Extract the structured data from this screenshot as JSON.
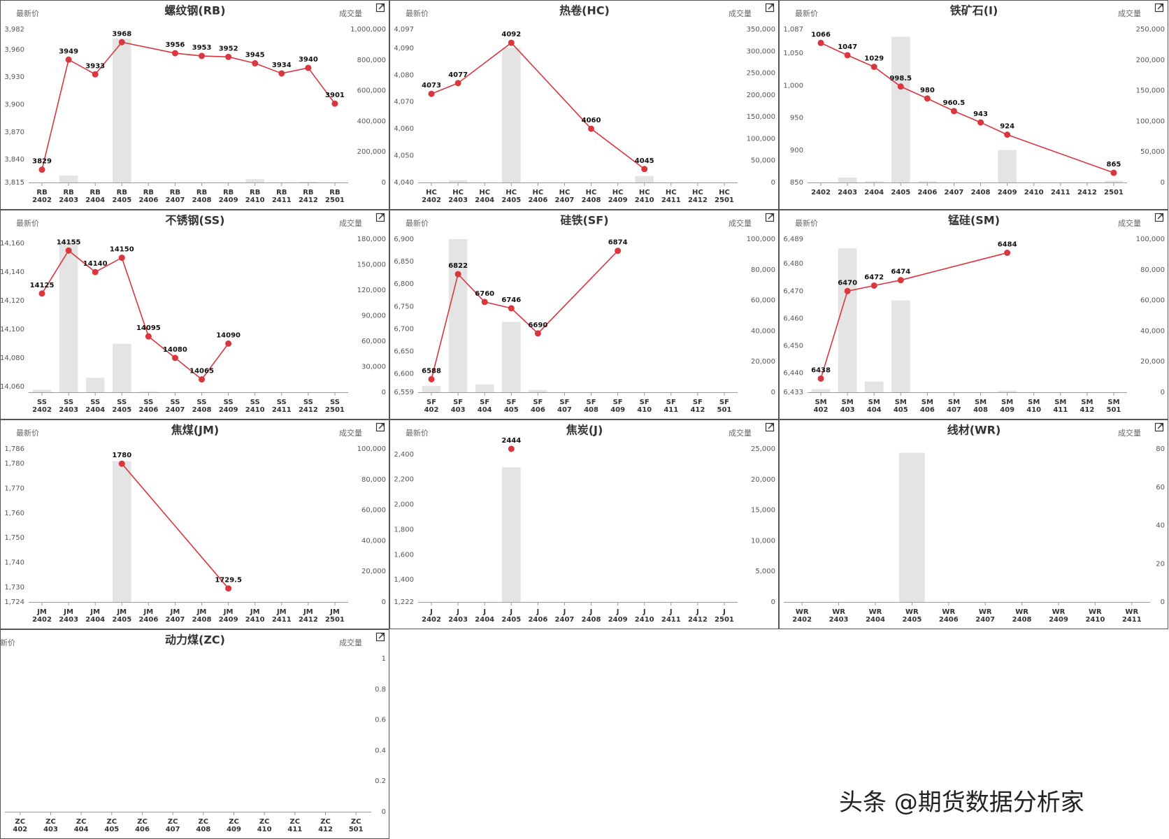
{
  "chart_data": [
    {
      "type": "combo",
      "title": "螺纹钢(RB)",
      "y_label": "最新价",
      "y2_label": "成交量",
      "categories": [
        "RB\n2402",
        "RB\n2403",
        "RB\n2404",
        "RB\n2405",
        "RB\n2406",
        "RB\n2407",
        "RB\n2408",
        "RB\n2409",
        "RB\n2410",
        "RB\n2411",
        "RB\n2412",
        "RB\n2501"
      ],
      "ylim": [
        3815,
        3982
      ],
      "yticks": [
        {
          "value": 3815,
          "label": "3,815"
        },
        {
          "value": 3840,
          "label": "3,840"
        },
        {
          "value": 3870,
          "label": "3,870"
        },
        {
          "value": 3900,
          "label": "3,900"
        },
        {
          "value": 3930,
          "label": "3,930"
        },
        {
          "value": 3960,
          "label": "3,960"
        },
        {
          "value": 3982,
          "label": "3,982"
        }
      ],
      "y2lim": [
        0,
        1000000
      ],
      "y2ticks": [
        0,
        {
          "value": 200000,
          "label": "200,000"
        },
        {
          "value": 400000,
          "label": "400,000"
        },
        {
          "value": 600000,
          "label": "600,000"
        },
        {
          "value": 800000,
          "label": "800,000"
        },
        {
          "value": 1000000,
          "label": "1,000,000"
        }
      ],
      "connect_gaps": true,
      "series": [
        {
          "type": "bar",
          "axis": "y2",
          "color": "#e4e4e4",
          "values": [
            null,
            45000,
            null,
            940000,
            null,
            null,
            null,
            null,
            22000,
            null,
            5000,
            null
          ]
        },
        {
          "type": "line",
          "color": "#d9363e",
          "values": [
            3829,
            3949,
            3933,
            3968,
            null,
            3956,
            3953,
            3952,
            3945,
            3934,
            3940,
            3901
          ]
        }
      ]
    },
    {
      "type": "combo",
      "title": "热卷(HC)",
      "y_label": "最新价",
      "y2_label": "成交量",
      "categories": [
        "HC\n2402",
        "HC\n2403",
        "HC\n2404",
        "HC\n2405",
        "HC\n2406",
        "HC\n2407",
        "HC\n2408",
        "HC\n2409",
        "HC\n2410",
        "HC\n2411",
        "HC\n2412",
        "HC\n2501"
      ],
      "ylim": [
        4040,
        4097
      ],
      "yticks": [
        {
          "value": 4040,
          "label": "4,040"
        },
        {
          "value": 4050,
          "label": "4,050"
        },
        {
          "value": 4060,
          "label": "4,060"
        },
        {
          "value": 4070,
          "label": "4,070"
        },
        {
          "value": 4080,
          "label": "4,080"
        },
        {
          "value": 4090,
          "label": "4,090"
        },
        {
          "value": 4097,
          "label": "4,097"
        }
      ],
      "y2lim": [
        0,
        350000
      ],
      "y2ticks": [
        0,
        {
          "value": 50000,
          "label": "50,000"
        },
        {
          "value": 100000,
          "label": "100,000"
        },
        {
          "value": 150000,
          "label": "150,000"
        },
        {
          "value": 200000,
          "label": "200,000"
        },
        {
          "value": 250000,
          "label": "250,000"
        },
        {
          "value": 300000,
          "label": "300,000"
        },
        {
          "value": 350000,
          "label": "350,000"
        }
      ],
      "connect_gaps": true,
      "series": [
        {
          "type": "bar",
          "axis": "y2",
          "color": "#e4e4e4",
          "values": [
            null,
            5000,
            null,
            308000,
            null,
            null,
            null,
            null,
            15000,
            null,
            null,
            null
          ]
        },
        {
          "type": "line",
          "color": "#d9363e",
          "values": [
            4073,
            4077,
            null,
            4092,
            null,
            null,
            4060,
            null,
            4045,
            null,
            null,
            null
          ]
        }
      ]
    },
    {
      "type": "combo",
      "title": "铁矿石(I)",
      "y_label": "最新价",
      "y2_label": "成交量",
      "categories": [
        "2402",
        "2403",
        "2404",
        "2405",
        "2406",
        "2407",
        "2408",
        "2409",
        "2410",
        "2411",
        "2412",
        "2501"
      ],
      "ylim": [
        850,
        1087
      ],
      "yticks": [
        850,
        900,
        950,
        {
          "value": 1000,
          "label": "1,000"
        },
        {
          "value": 1050,
          "label": "1,050"
        },
        {
          "value": 1087,
          "label": "1,087"
        }
      ],
      "y2lim": [
        0,
        250000
      ],
      "y2ticks": [
        0,
        {
          "value": 50000,
          "label": "50,000"
        },
        {
          "value": 100000,
          "label": "100,000"
        },
        {
          "value": 150000,
          "label": "150,000"
        },
        {
          "value": 200000,
          "label": "200,000"
        },
        {
          "value": 250000,
          "label": "250,000"
        }
      ],
      "connect_gaps": true,
      "series": [
        {
          "type": "bar",
          "axis": "y2",
          "color": "#e4e4e4",
          "values": [
            null,
            8000,
            2000,
            238000,
            2000,
            null,
            null,
            53000,
            null,
            null,
            null,
            3000
          ]
        },
        {
          "type": "line",
          "color": "#d9363e",
          "values": [
            1066,
            1047,
            1029,
            998.5,
            980,
            960.5,
            943,
            924,
            null,
            null,
            null,
            865
          ]
        }
      ]
    },
    {
      "type": "combo",
      "title": "不锈钢(SS)",
      "y_label": "最新价",
      "y2_label": "成交量",
      "categories": [
        "SS\n2402",
        "SS\n2403",
        "SS\n2404",
        "SS\n2405",
        "SS\n2406",
        "SS\n2407",
        "SS\n2408",
        "SS\n2409",
        "SS\n2410",
        "SS\n2411",
        "SS\n2412",
        "SS\n2501"
      ],
      "ylim": [
        14056,
        14163
      ],
      "yticks": [
        {
          "value": 14060,
          "label": "14,060"
        },
        {
          "value": 14080,
          "label": "14,080"
        },
        {
          "value": 14100,
          "label": "14,100"
        },
        {
          "value": 14120,
          "label": "14,120"
        },
        {
          "value": 14140,
          "label": "14,140"
        },
        {
          "value": 14160,
          "label": "14,160"
        }
      ],
      "y2lim": [
        0,
        180000
      ],
      "y2ticks": [
        0,
        {
          "value": 30000,
          "label": "30,000"
        },
        {
          "value": 60000,
          "label": "60,000"
        },
        {
          "value": 90000,
          "label": "90,000"
        },
        {
          "value": 120000,
          "label": "120,000"
        },
        {
          "value": 150000,
          "label": "150,000"
        },
        {
          "value": 180000,
          "label": "180,000"
        }
      ],
      "connect_gaps": true,
      "series": [
        {
          "type": "bar",
          "axis": "y2",
          "color": "#e4e4e4",
          "values": [
            3000,
            178000,
            17000,
            57000,
            1000,
            null,
            null,
            null,
            null,
            null,
            null,
            null
          ]
        },
        {
          "type": "line",
          "color": "#d9363e",
          "values": [
            14125,
            14155,
            14140,
            14150,
            14095,
            14080,
            14065,
            14090,
            null,
            null,
            null,
            null
          ]
        }
      ]
    },
    {
      "type": "combo",
      "title": "硅铁(SF)",
      "y_label": "最新价",
      "y2_label": "成交量",
      "categories": [
        "SF\n402",
        "SF\n403",
        "SF\n404",
        "SF\n405",
        "SF\n406",
        "SF\n407",
        "SF\n408",
        "SF\n409",
        "SF\n410",
        "SF\n411",
        "SF\n412",
        "SF\n501"
      ],
      "ylim": [
        6559,
        6900
      ],
      "yticks": [
        {
          "value": 6559,
          "label": "6,559"
        },
        {
          "value": 6600,
          "label": "6,600"
        },
        {
          "value": 6650,
          "label": "6,650"
        },
        {
          "value": 6700,
          "label": "6,700"
        },
        {
          "value": 6750,
          "label": "6,750"
        },
        {
          "value": 6800,
          "label": "6,800"
        },
        {
          "value": 6850,
          "label": "6,850"
        },
        {
          "value": 6900,
          "label": "6,900"
        }
      ],
      "y2lim": [
        0,
        100000
      ],
      "y2ticks": [
        0,
        {
          "value": 20000,
          "label": "20,000"
        },
        {
          "value": 40000,
          "label": "40,000"
        },
        {
          "value": 60000,
          "label": "60,000"
        },
        {
          "value": 80000,
          "label": "80,000"
        },
        {
          "value": 100000,
          "label": "100,000"
        }
      ],
      "connect_gaps": true,
      "series": [
        {
          "type": "bar",
          "axis": "y2",
          "color": "#e4e4e4",
          "values": [
            4000,
            100000,
            5000,
            46000,
            1500,
            null,
            null,
            null,
            null,
            null,
            null,
            null
          ]
        },
        {
          "type": "line",
          "color": "#d9363e",
          "values": [
            6588,
            6822,
            6760,
            6746,
            6690,
            null,
            null,
            6874,
            null,
            null,
            null,
            null
          ]
        }
      ]
    },
    {
      "type": "combo",
      "title": "锰硅(SM)",
      "y_label": "最新价",
      "y2_label": "成交量",
      "categories": [
        "SM\n402",
        "SM\n403",
        "SM\n404",
        "SM\n405",
        "SM\n406",
        "SM\n407",
        "SM\n408",
        "SM\n409",
        "SM\n410",
        "SM\n411",
        "SM\n412",
        "SM\n501"
      ],
      "ylim": [
        6433,
        6489
      ],
      "yticks": [
        {
          "value": 6433,
          "label": "6,433"
        },
        {
          "value": 6440,
          "label": "6,440"
        },
        {
          "value": 6450,
          "label": "6,450"
        },
        {
          "value": 6460,
          "label": "6,460"
        },
        {
          "value": 6470,
          "label": "6,470"
        },
        {
          "value": 6480,
          "label": "6,480"
        },
        {
          "value": 6489,
          "label": "6,489"
        }
      ],
      "y2lim": [
        0,
        100000
      ],
      "y2ticks": [
        0,
        {
          "value": 20000,
          "label": "20,000"
        },
        {
          "value": 40000,
          "label": "40,000"
        },
        {
          "value": 60000,
          "label": "60,000"
        },
        {
          "value": 80000,
          "label": "80,000"
        },
        {
          "value": 100000,
          "label": "100,000"
        }
      ],
      "connect_gaps": true,
      "series": [
        {
          "type": "bar",
          "axis": "y2",
          "color": "#e4e4e4",
          "values": [
            2000,
            94000,
            7000,
            60000,
            null,
            null,
            null,
            1000,
            null,
            null,
            null,
            null
          ]
        },
        {
          "type": "line",
          "color": "#d9363e",
          "values": [
            6438,
            6470,
            6472,
            6474,
            null,
            null,
            null,
            6484,
            null,
            null,
            null,
            null
          ]
        }
      ]
    },
    {
      "type": "combo",
      "title": "焦煤(JM)",
      "y_label": "最新价",
      "y2_label": "成交量",
      "categories": [
        "JM\n2402",
        "JM\n2403",
        "JM\n2404",
        "JM\n2405",
        "JM\n2406",
        "JM\n2407",
        "JM\n2408",
        "JM\n2409",
        "JM\n2410",
        "JM\n2411",
        "JM\n2412",
        "JM\n2501"
      ],
      "ylim": [
        1724,
        1786
      ],
      "yticks": [
        {
          "value": 1724,
          "label": "1,724"
        },
        {
          "value": 1730,
          "label": "1,730"
        },
        {
          "value": 1740,
          "label": "1,740"
        },
        {
          "value": 1750,
          "label": "1,750"
        },
        {
          "value": 1760,
          "label": "1,760"
        },
        {
          "value": 1770,
          "label": "1,770"
        },
        {
          "value": 1780,
          "label": "1,780"
        },
        {
          "value": 1786,
          "label": "1,786"
        }
      ],
      "y2lim": [
        0,
        100000
      ],
      "y2ticks": [
        0,
        {
          "value": 20000,
          "label": "20,000"
        },
        {
          "value": 40000,
          "label": "40,000"
        },
        {
          "value": 60000,
          "label": "60,000"
        },
        {
          "value": 80000,
          "label": "80,000"
        },
        {
          "value": 100000,
          "label": "100,000"
        }
      ],
      "connect_gaps": true,
      "series": [
        {
          "type": "bar",
          "axis": "y2",
          "color": "#e4e4e4",
          "values": [
            null,
            null,
            null,
            92000,
            null,
            null,
            null,
            null,
            null,
            null,
            null,
            null
          ]
        },
        {
          "type": "line",
          "color": "#d9363e",
          "values": [
            null,
            null,
            null,
            1780,
            null,
            null,
            null,
            1729.5,
            null,
            null,
            null,
            null
          ]
        }
      ]
    },
    {
      "type": "combo",
      "title": "焦炭(J)",
      "y_label": "最新价",
      "y2_label": "成交量",
      "categories": [
        "J\n2402",
        "J\n2403",
        "J\n2404",
        "J\n2405",
        "J\n2406",
        "J\n2407",
        "J\n2408",
        "J\n2409",
        "J\n2410",
        "J\n2411",
        "J\n2412",
        "J\n2501"
      ],
      "ylim": [
        1222,
        2444
      ],
      "yticks": [
        {
          "value": 1222,
          "label": "1,222"
        },
        {
          "value": 1400,
          "label": "1,400"
        },
        {
          "value": 1600,
          "label": "1,600"
        },
        {
          "value": 1800,
          "label": "1,800"
        },
        {
          "value": 2000,
          "label": "2,000"
        },
        {
          "value": 2200,
          "label": "2,200"
        },
        {
          "value": 2400,
          "label": "2,400"
        }
      ],
      "y2lim": [
        0,
        25000
      ],
      "y2ticks": [
        0,
        {
          "value": 5000,
          "label": "5,000"
        },
        {
          "value": 10000,
          "label": "10,000"
        },
        {
          "value": 15000,
          "label": "15,000"
        },
        {
          "value": 20000,
          "label": "20,000"
        },
        {
          "value": 25000,
          "label": "25,000"
        }
      ],
      "connect_gaps": true,
      "series": [
        {
          "type": "bar",
          "axis": "y2",
          "color": "#e4e4e4",
          "values": [
            null,
            null,
            null,
            22000,
            null,
            null,
            null,
            null,
            null,
            null,
            null,
            null
          ]
        },
        {
          "type": "line",
          "color": "#d9363e",
          "values": [
            null,
            null,
            null,
            2444,
            null,
            null,
            null,
            null,
            null,
            null,
            null,
            null
          ]
        }
      ]
    },
    {
      "type": "combo",
      "title": "线材(WR)",
      "y2_label": "成交量",
      "categories": [
        "WR\n2402",
        "WR\n2403",
        "WR\n2404",
        "WR\n2405",
        "WR\n2406",
        "WR\n2407",
        "WR\n2408",
        "WR\n2409",
        "WR\n2410",
        "WR\n2411"
      ],
      "y2lim": [
        0,
        80
      ],
      "y2ticks": [
        0,
        20,
        40,
        60,
        80
      ],
      "series": [
        {
          "type": "bar",
          "axis": "y2",
          "color": "#e4e4e4",
          "values": [
            null,
            null,
            null,
            78,
            null,
            null,
            null,
            null,
            null,
            null
          ]
        }
      ]
    },
    {
      "type": "combo",
      "title": "动力煤(ZC)",
      "y_label": "最新价",
      "y2_label": "成交量",
      "categories": [
        "ZC\n402",
        "ZC\n403",
        "ZC\n404",
        "ZC\n405",
        "ZC\n406",
        "ZC\n407",
        "ZC\n408",
        "ZC\n409",
        "ZC\n410",
        "ZC\n411",
        "ZC\n412",
        "ZC\n501"
      ],
      "y2lim": [
        0,
        1
      ],
      "y2ticks": [
        0,
        0.2,
        0.4,
        0.6,
        0.8,
        1
      ],
      "series": [
        {
          "type": "bar",
          "axis": "y2",
          "color": "#e4e4e4",
          "values": [
            null,
            null,
            null,
            null,
            null,
            null,
            null,
            null,
            null,
            null,
            null,
            null
          ]
        }
      ]
    }
  ],
  "watermark": "头条 @期货数据分析家"
}
